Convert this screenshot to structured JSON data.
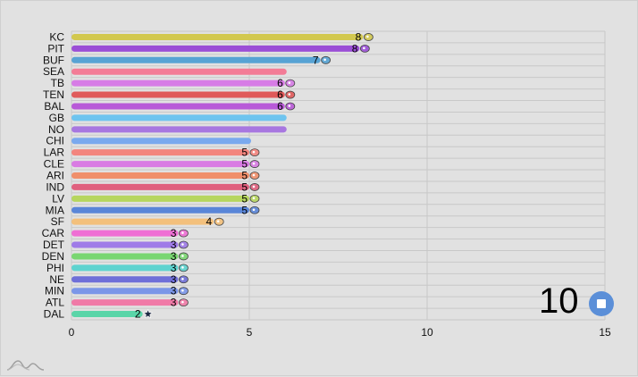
{
  "frame_label": "10",
  "controls": {
    "play_icon": "stop-icon",
    "brand_icon": "amcharts-logo-icon",
    "accent": "#5b8fd8"
  },
  "chart_data": {
    "type": "bar",
    "orientation": "horizontal",
    "xlim": [
      0,
      15
    ],
    "xticks": [
      "0",
      "5",
      "10",
      "15"
    ],
    "grid": true,
    "bars": [
      {
        "team": "KC",
        "value": 8.2,
        "label": "8",
        "color": "#d2c84f",
        "icon": "kc-chiefs-logo-icon"
      },
      {
        "team": "PIT",
        "value": 8.1,
        "label": "8",
        "color": "#9b4fd6",
        "icon": "pit-steelers-logo-icon"
      },
      {
        "team": "BUF",
        "value": 7.0,
        "label": "7",
        "color": "#57a3d4",
        "icon": "buf-bills-logo-icon"
      },
      {
        "team": "SEA",
        "value": 6.05,
        "label": "",
        "color": "#f37c96",
        "icon": ""
      },
      {
        "team": "TB",
        "value": 6.0,
        "label": "6",
        "color": "#d77ce6",
        "icon": "tb-buccaneers-logo-icon"
      },
      {
        "team": "TEN",
        "value": 6.0,
        "label": "6",
        "color": "#e05a5a",
        "icon": "ten-titans-logo-icon"
      },
      {
        "team": "BAL",
        "value": 6.0,
        "label": "6",
        "color": "#b85ad8",
        "icon": "bal-ravens-logo-icon"
      },
      {
        "team": "GB",
        "value": 6.05,
        "label": "",
        "color": "#6ec4ef",
        "icon": ""
      },
      {
        "team": "NO",
        "value": 6.05,
        "label": "",
        "color": "#a877e0",
        "icon": ""
      },
      {
        "team": "CHI",
        "value": 5.05,
        "label": "",
        "color": "#7aa9ee",
        "icon": ""
      },
      {
        "team": "LAR",
        "value": 5.0,
        "label": "5",
        "color": "#f3857e",
        "icon": "lar-rams-logo-icon"
      },
      {
        "team": "CLE",
        "value": 5.0,
        "label": "5",
        "color": "#d97be3",
        "icon": "cle-browns-logo-icon"
      },
      {
        "team": "ARI",
        "value": 5.0,
        "label": "5",
        "color": "#f08f6b",
        "icon": "ari-cardinals-logo-icon"
      },
      {
        "team": "IND",
        "value": 5.0,
        "label": "5",
        "color": "#e0607e",
        "icon": "ind-colts-logo-icon"
      },
      {
        "team": "LV",
        "value": 5.0,
        "label": "5",
        "color": "#b6d65e",
        "icon": "lv-raiders-logo-icon"
      },
      {
        "team": "MIA",
        "value": 5.0,
        "label": "5",
        "color": "#5a86d8",
        "icon": "mia-dolphins-logo-icon"
      },
      {
        "team": "SF",
        "value": 4.0,
        "label": "4",
        "color": "#f3c07c",
        "icon": "sf-49ers-logo-icon"
      },
      {
        "team": "CAR",
        "value": 3.0,
        "label": "3",
        "color": "#ef6fd4",
        "icon": "car-panthers-logo-icon"
      },
      {
        "team": "DET",
        "value": 3.0,
        "label": "3",
        "color": "#9f7be8",
        "icon": "det-lions-logo-icon"
      },
      {
        "team": "DEN",
        "value": 3.0,
        "label": "3",
        "color": "#79d671",
        "icon": "den-broncos-logo-icon"
      },
      {
        "team": "PHI",
        "value": 3.0,
        "label": "3",
        "color": "#5ed3cf",
        "icon": "phi-eagles-logo-icon"
      },
      {
        "team": "NE",
        "value": 3.0,
        "label": "3",
        "color": "#6f6fd8",
        "icon": "ne-patriots-logo-icon"
      },
      {
        "team": "MIN",
        "value": 3.0,
        "label": "3",
        "color": "#7b96e8",
        "icon": "min-vikings-logo-icon"
      },
      {
        "team": "ATL",
        "value": 3.0,
        "label": "3",
        "color": "#f07aa7",
        "icon": "atl-falcons-logo-icon"
      },
      {
        "team": "DAL",
        "value": 2.0,
        "label": "2",
        "color": "#5ad5a8",
        "icon": "dal-cowboys-logo-icon"
      }
    ]
  }
}
